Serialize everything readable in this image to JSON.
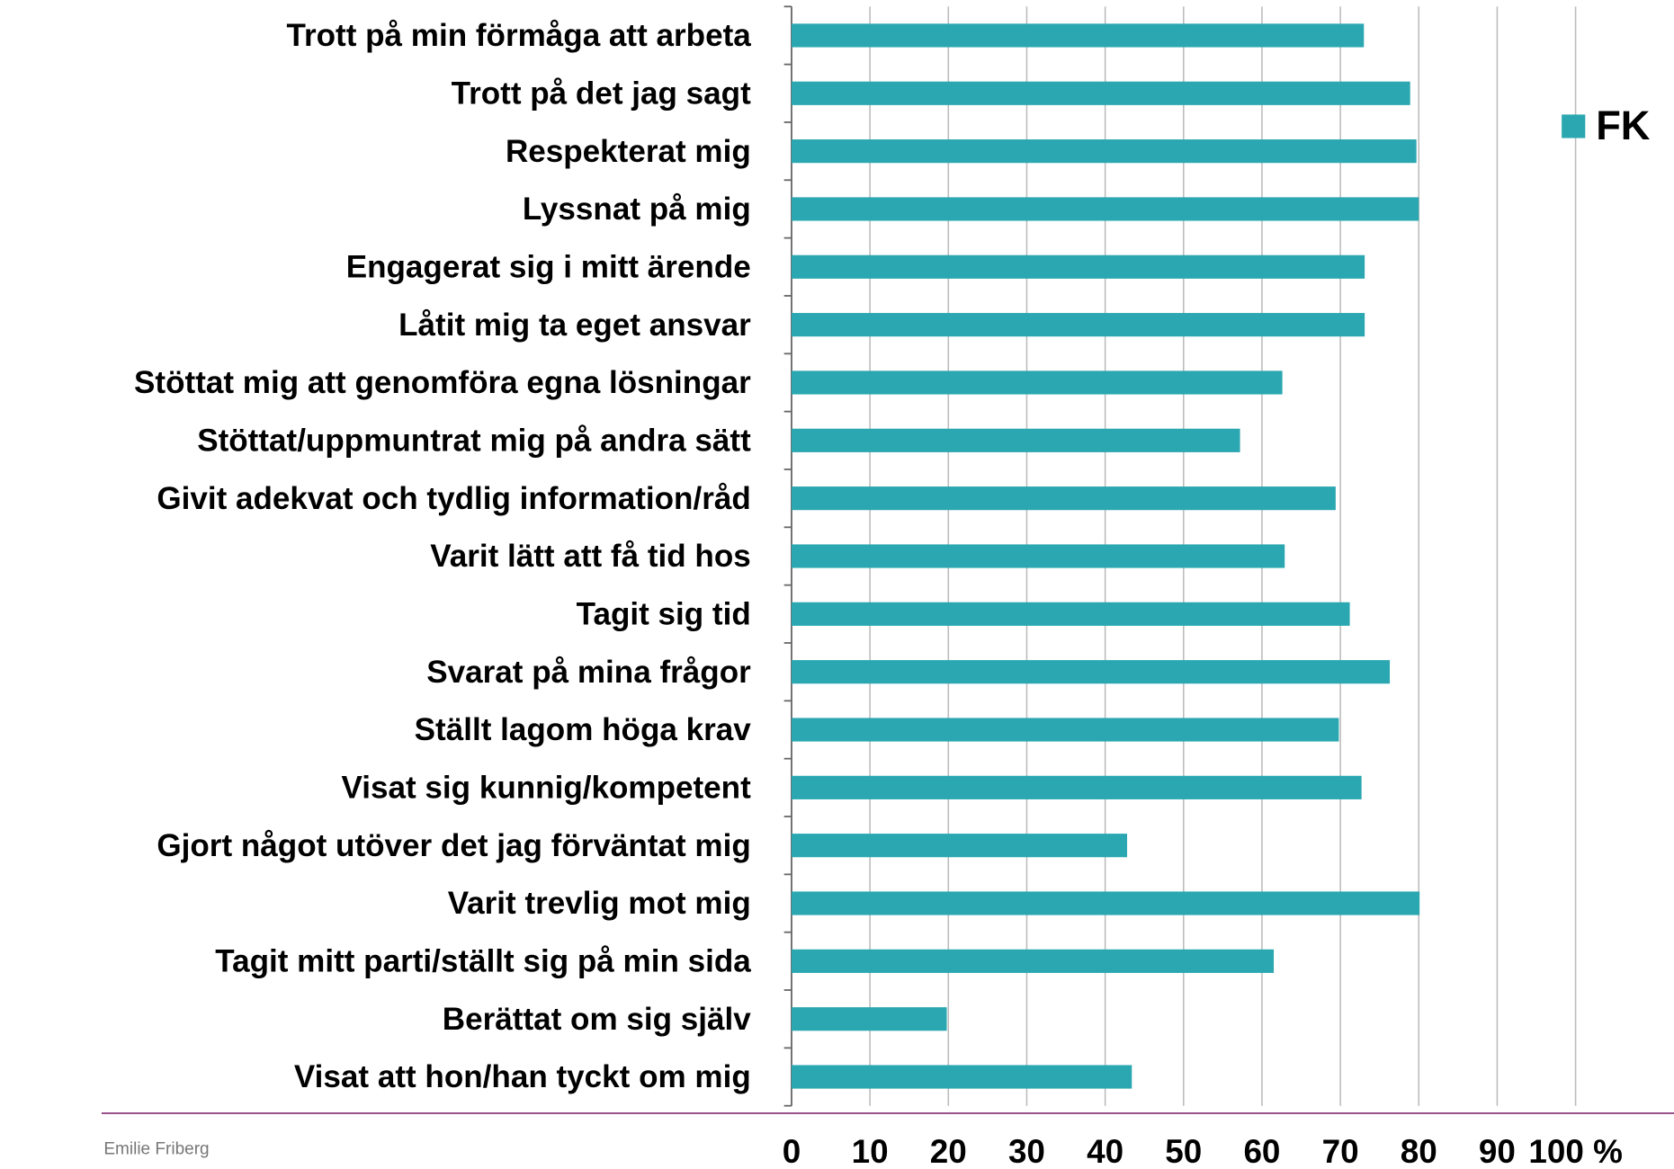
{
  "chart_data": {
    "type": "bar",
    "orientation": "horizontal",
    "categories": [
      "Trott på min förmåga att arbeta",
      "Trott på det jag sagt",
      "Respekterat mig",
      "Lyssnat på mig",
      "Engagerat sig i mitt ärende",
      "Låtit mig ta eget ansvar",
      "Stöttat mig att genomföra egna lösningar",
      "Stöttat/uppmuntrat mig på andra sätt",
      "Givit adekvat och tydlig information/råd",
      "Varit lätt att få tid hos",
      "Tagit sig tid",
      "Svarat på mina frågor",
      "Ställt lagom höga krav",
      "Visat sig kunnig/kompetent",
      "Gjort något utöver det jag förväntat mig",
      "Varit trevlig mot mig",
      "Tagit mitt parti/ställt sig på min sida",
      "Berättat om sig själv",
      "Visat att hon/han tyckt om mig"
    ],
    "series": [
      {
        "name": "FK",
        "color": "#2aa7b0",
        "values": [
          73.0,
          78.9,
          79.7,
          80.0,
          73.1,
          73.1,
          62.6,
          57.2,
          69.4,
          62.9,
          71.2,
          76.3,
          69.8,
          72.7,
          42.8,
          80.1,
          61.5,
          19.8,
          43.4
        ]
      }
    ],
    "xlim": [
      0,
      100
    ],
    "xticks": [
      0,
      10,
      20,
      30,
      40,
      50,
      60,
      70,
      80,
      90,
      {
        "value": 100,
        "label": "100 %"
      }
    ],
    "grid": true,
    "legend": "upper right"
  },
  "footer": "Emilie Friberg"
}
